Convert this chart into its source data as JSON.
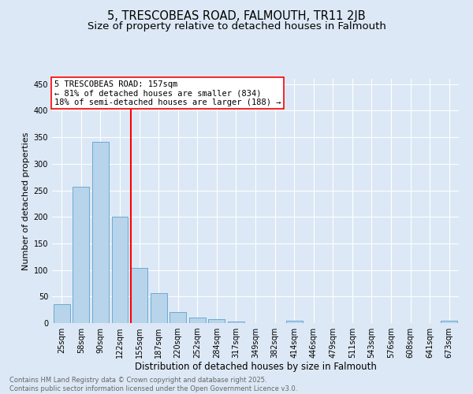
{
  "title": "5, TRESCOBEAS ROAD, FALMOUTH, TR11 2JB",
  "subtitle": "Size of property relative to detached houses in Falmouth",
  "xlabel": "Distribution of detached houses by size in Falmouth",
  "ylabel": "Number of detached properties",
  "categories": [
    "25sqm",
    "58sqm",
    "90sqm",
    "122sqm",
    "155sqm",
    "187sqm",
    "220sqm",
    "252sqm",
    "284sqm",
    "317sqm",
    "349sqm",
    "382sqm",
    "414sqm",
    "446sqm",
    "479sqm",
    "511sqm",
    "543sqm",
    "576sqm",
    "608sqm",
    "641sqm",
    "673sqm"
  ],
  "values": [
    36,
    256,
    342,
    200,
    104,
    56,
    21,
    11,
    7,
    3,
    0,
    0,
    4,
    0,
    0,
    0,
    0,
    0,
    0,
    0,
    4
  ],
  "bar_color": "#b8d4ea",
  "bar_edge_color": "#6aaad4",
  "vline_color": "red",
  "vline_index": 4,
  "annotation_text": "5 TRESCOBEAS ROAD: 157sqm\n← 81% of detached houses are smaller (834)\n18% of semi-detached houses are larger (188) →",
  "annotation_box_color": "white",
  "annotation_box_edgecolor": "red",
  "ylim": [
    0,
    460
  ],
  "yticks": [
    0,
    50,
    100,
    150,
    200,
    250,
    300,
    350,
    400,
    450
  ],
  "bg_color": "#dce8f5",
  "footer_text": "Contains HM Land Registry data © Crown copyright and database right 2025.\nContains public sector information licensed under the Open Government Licence v3.0.",
  "title_fontsize": 10.5,
  "subtitle_fontsize": 9.5,
  "xlabel_fontsize": 8.5,
  "ylabel_fontsize": 8,
  "tick_fontsize": 7,
  "annotation_fontsize": 7.5,
  "footer_fontsize": 6
}
